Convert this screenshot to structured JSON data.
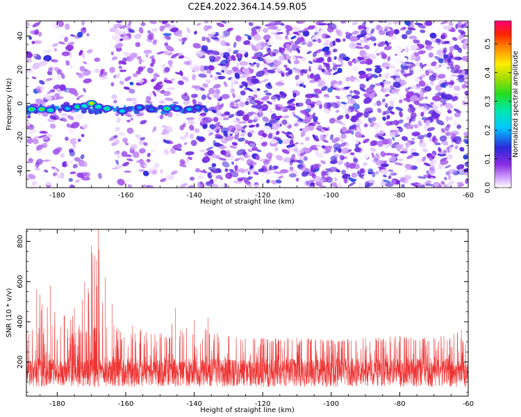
{
  "title": "C2E4.2022.364.14.59.R05",
  "chart_data": [
    {
      "type": "heatmap",
      "xlabel": "Height of straight line (km)",
      "ylabel": "Frequency (Hz)",
      "xlim": [
        -189,
        -60
      ],
      "ylim": [
        -50,
        49
      ],
      "xticks": [
        -180,
        -160,
        -140,
        -120,
        -100,
        -80,
        -60
      ],
      "yticks": [
        -40,
        -20,
        0,
        20,
        40
      ],
      "colorbar": {
        "label": "Normalized spectral amplitude",
        "range": [
          0,
          0.58
        ],
        "ticks": [
          0,
          0.1,
          0.2,
          0.3,
          0.4,
          0.5
        ]
      },
      "background_speckle": {
        "low_density_x_range": [
          -172,
          -164
        ],
        "sparse_region_x_range": [
          -189,
          -138
        ],
        "dense_region_x_range": [
          -138,
          -60
        ]
      },
      "signal_band": {
        "frequency": -3,
        "x_range": [
          -189,
          -136
        ],
        "peaks": [
          {
            "x": -187.5,
            "y": -3.5,
            "v": 0.34
          },
          {
            "x": -184.5,
            "y": -3.5,
            "v": 0.36
          },
          {
            "x": -182,
            "y": -4,
            "v": 0.28
          },
          {
            "x": -177,
            "y": -3,
            "v": 0.22
          },
          {
            "x": -174,
            "y": -2,
            "v": 0.3
          },
          {
            "x": -172,
            "y": -1.5,
            "v": 0.27
          },
          {
            "x": -170,
            "y": 0,
            "v": 0.44
          },
          {
            "x": -168,
            "y": -2,
            "v": 0.28
          },
          {
            "x": -165.5,
            "y": -3,
            "v": 0.3
          },
          {
            "x": -161,
            "y": -4.5,
            "v": 0.24
          },
          {
            "x": -156,
            "y": -2.5,
            "v": 0.2
          },
          {
            "x": -152.5,
            "y": -3.5,
            "v": 0.18
          },
          {
            "x": -148,
            "y": -3,
            "v": 0.32
          },
          {
            "x": -145,
            "y": -3,
            "v": 0.2
          },
          {
            "x": -141.5,
            "y": -3.5,
            "v": 0.22
          },
          {
            "x": -139,
            "y": -2.5,
            "v": 0.18
          }
        ]
      }
    },
    {
      "type": "line",
      "xlabel": "Height of straight line (km)",
      "ylabel": "SNR (10 * v/v)",
      "xlim": [
        -189,
        -60
      ],
      "ylim": [
        30,
        860
      ],
      "xticks": [
        -180,
        -160,
        -140,
        -120,
        -100,
        -80,
        -60
      ],
      "yticks": [
        200,
        400,
        600,
        800
      ],
      "color": "#ee3333",
      "baseline": {
        "center": 140,
        "spread": 140,
        "min": 45,
        "max": 300
      },
      "envelope": [
        {
          "x": -189,
          "y": 550
        },
        {
          "x": -186,
          "y": 560
        },
        {
          "x": -182,
          "y": 580
        },
        {
          "x": -178,
          "y": 430
        },
        {
          "x": -175,
          "y": 470
        },
        {
          "x": -172,
          "y": 600
        },
        {
          "x": -170,
          "y": 780
        },
        {
          "x": -168,
          "y": 860
        },
        {
          "x": -166,
          "y": 620
        },
        {
          "x": -164,
          "y": 490
        },
        {
          "x": -162,
          "y": 360
        },
        {
          "x": -158,
          "y": 380
        },
        {
          "x": -154,
          "y": 350
        },
        {
          "x": -150,
          "y": 340
        },
        {
          "x": -146.5,
          "y": 390
        },
        {
          "x": -145.5,
          "y": 470
        },
        {
          "x": -144,
          "y": 360
        },
        {
          "x": -140,
          "y": 410
        },
        {
          "x": -136,
          "y": 420
        },
        {
          "x": -130,
          "y": 330
        },
        {
          "x": -120,
          "y": 320
        },
        {
          "x": -110,
          "y": 320
        },
        {
          "x": -100,
          "y": 310
        },
        {
          "x": -90,
          "y": 320
        },
        {
          "x": -80,
          "y": 330
        },
        {
          "x": -70,
          "y": 320
        },
        {
          "x": -62,
          "y": 360
        },
        {
          "x": -60,
          "y": 330
        }
      ]
    }
  ]
}
